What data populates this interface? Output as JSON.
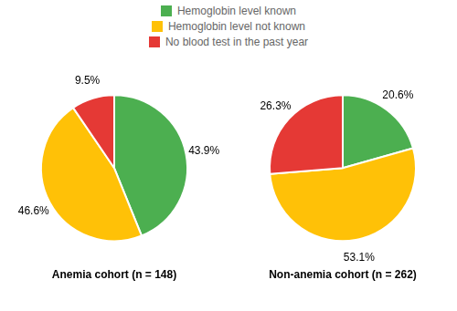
{
  "chart_data": [
    {
      "type": "pie",
      "title": "Anemia cohort (n = 148)",
      "categories": [
        "Hemoglobin level known",
        "Hemoglobin level not known",
        "No blood test in the past year"
      ],
      "values": [
        43.9,
        46.6,
        9.5
      ],
      "value_labels": [
        "43.9%",
        "46.6%",
        "9.5%"
      ],
      "colors": [
        "#4CAF50",
        "#FFC107",
        "#E53935"
      ],
      "data_labels": true,
      "legend": "top"
    },
    {
      "type": "pie",
      "title": "Non-anemia cohort (n = 262)",
      "categories": [
        "Hemoglobin level known",
        "Hemoglobin level not known",
        "No blood test in the past year"
      ],
      "values": [
        20.6,
        53.1,
        26.3
      ],
      "value_labels": [
        "20.6%",
        "53.1%",
        "26.3%"
      ],
      "colors": [
        "#4CAF50",
        "#FFC107",
        "#E53935"
      ],
      "data_labels": true
    }
  ]
}
